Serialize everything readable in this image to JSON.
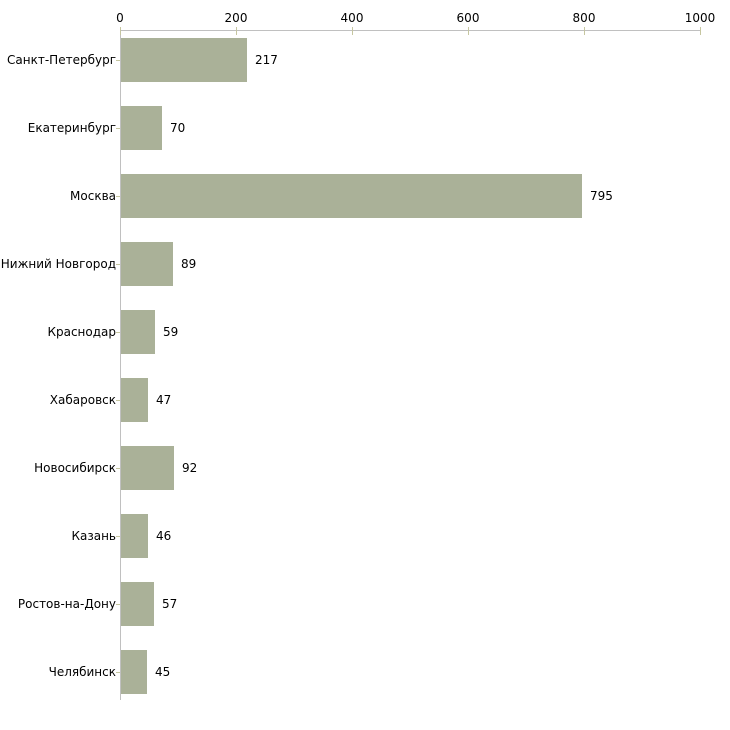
{
  "chart_data": {
    "type": "bar",
    "orientation": "horizontal",
    "title": "",
    "xlabel": "",
    "ylabel": "",
    "categories": [
      "Санкт-Петербург",
      "Екатеринбург",
      "Москва",
      "Нижний Новгород",
      "Краснодар",
      "Хабаровск",
      "Новосибирск",
      "Казань",
      "Ростов-на-Дону",
      "Челябинск"
    ],
    "values": [
      217,
      70,
      795,
      89,
      59,
      47,
      92,
      46,
      57,
      45
    ],
    "x_ticks": [
      0,
      200,
      400,
      600,
      800,
      1000
    ],
    "xlim": [
      0,
      1000
    ],
    "axis_position": "top",
    "grid": false,
    "legend": false,
    "data_labels": true,
    "colors": {
      "bar": "#aab198",
      "axis_line": "#c0c0c0",
      "tick_mark": "#c6c6a0",
      "text": "#000000",
      "background": "#ffffff"
    }
  }
}
